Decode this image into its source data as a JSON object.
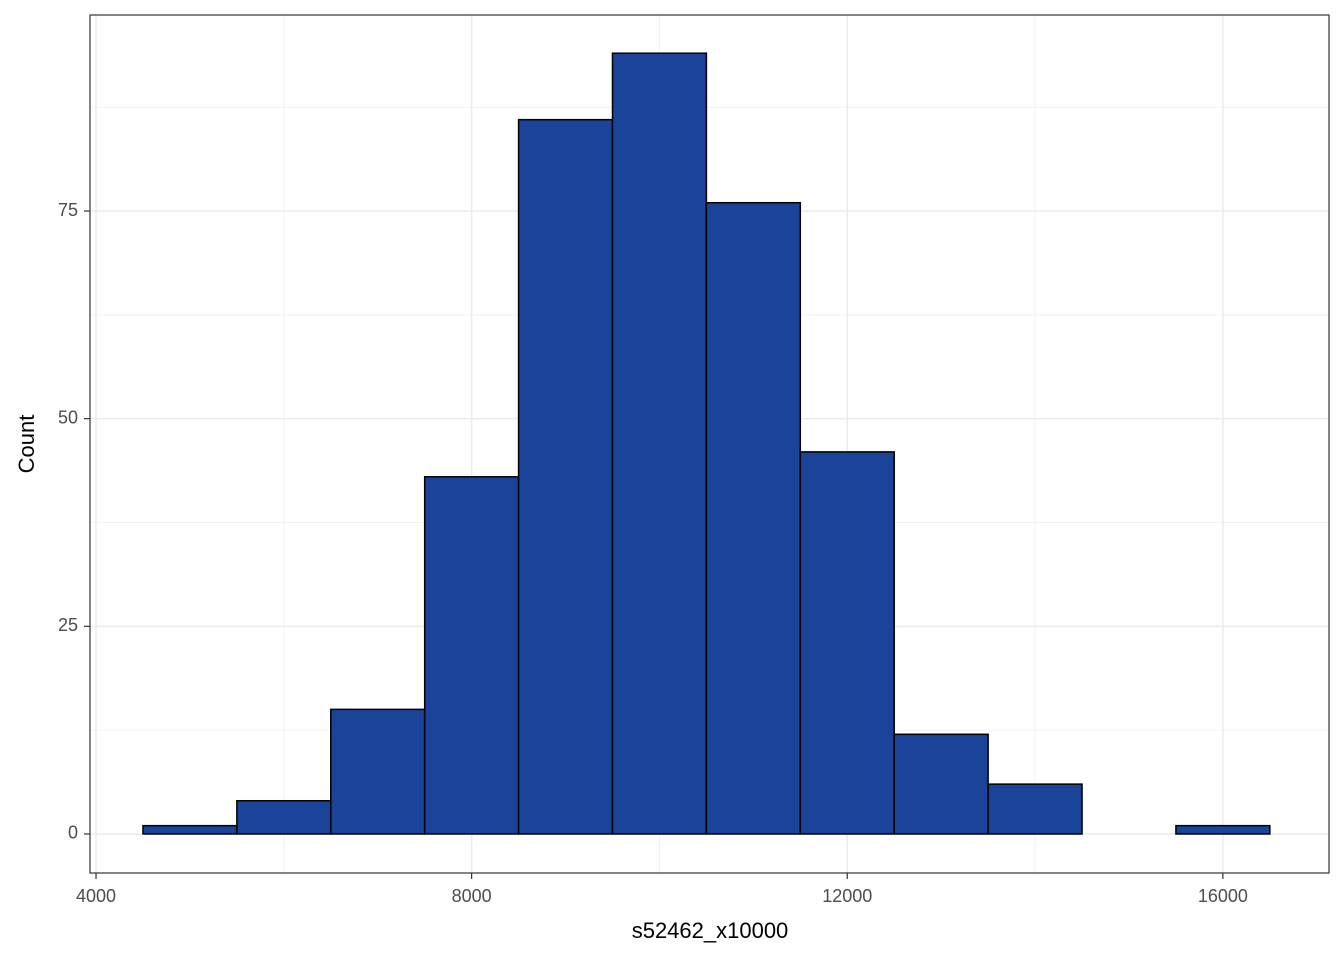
{
  "chart_data": {
    "type": "histogram",
    "x_label": "s52462_x10000",
    "y_label": "Count",
    "bins": [
      4500,
      5500,
      6500,
      7500,
      8500,
      9500,
      10500,
      11500,
      12500,
      13500,
      14500,
      15500,
      16500
    ],
    "values": [
      1,
      4,
      15,
      43,
      86,
      94,
      76,
      46,
      12,
      6,
      0,
      1
    ],
    "color": "#1a4499",
    "edge_color": "#000000",
    "xlim": [
      3936,
      17130
    ],
    "ylim": [
      -4.7,
      98.6
    ],
    "xticks": [
      4000,
      8000,
      12000,
      16000
    ],
    "yticks": [
      0,
      25,
      50,
      75
    ],
    "x_minor_ticks": [
      6000,
      10000,
      14000
    ],
    "y_minor_ticks": [
      12.5,
      37.5,
      62.5,
      87.5
    ],
    "grid": true
  }
}
